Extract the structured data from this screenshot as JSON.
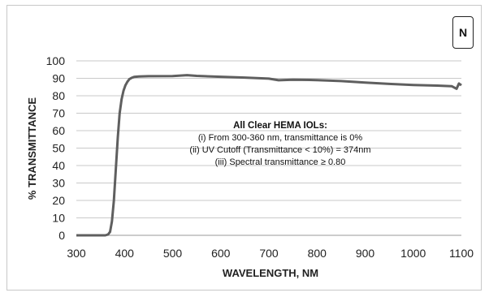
{
  "badge": "N",
  "chart_data": {
    "type": "line",
    "title": "",
    "xlabel": "WAVELENGTH, NM",
    "ylabel": "% TRANSMITTANCE",
    "xlim": [
      300,
      1100
    ],
    "ylim": [
      0,
      100
    ],
    "xticks": [
      300,
      400,
      500,
      600,
      700,
      800,
      900,
      1000,
      1100
    ],
    "yticks": [
      0,
      10,
      20,
      30,
      40,
      50,
      60,
      70,
      80,
      90,
      100
    ],
    "grid": "horizontal",
    "legend": "none",
    "color": "#5f5f5f",
    "series": [
      {
        "x": [
          300,
          340,
          360,
          366,
          370,
          374,
          378,
          382,
          386,
          390,
          394,
          398,
          402,
          406,
          410,
          415,
          420,
          430,
          450,
          500,
          530,
          550,
          600,
          650,
          700,
          720,
          750,
          800,
          850,
          900,
          950,
          1000,
          1050,
          1080,
          1090,
          1095,
          1100
        ],
        "y": [
          0,
          0,
          0,
          0.5,
          2,
          8,
          20,
          38,
          56,
          70,
          78,
          83,
          86,
          88,
          89.5,
          90.3,
          90.8,
          91,
          91.2,
          91.3,
          91.8,
          91.4,
          90.9,
          90.4,
          89.8,
          88.9,
          89.2,
          89,
          88.4,
          87.6,
          86.8,
          86.2,
          85.8,
          85.5,
          84,
          87,
          86
        ]
      }
    ],
    "annotation": {
      "title": "All Clear HEMA IOLs:",
      "lines": [
        "(i) From 300-360 nm, transmittance is 0%",
        "(ii) UV Cutoff (Transmittance < 10%) = 374nm",
        "(iii) Spectral transmittance ≥ 0.80"
      ]
    }
  }
}
